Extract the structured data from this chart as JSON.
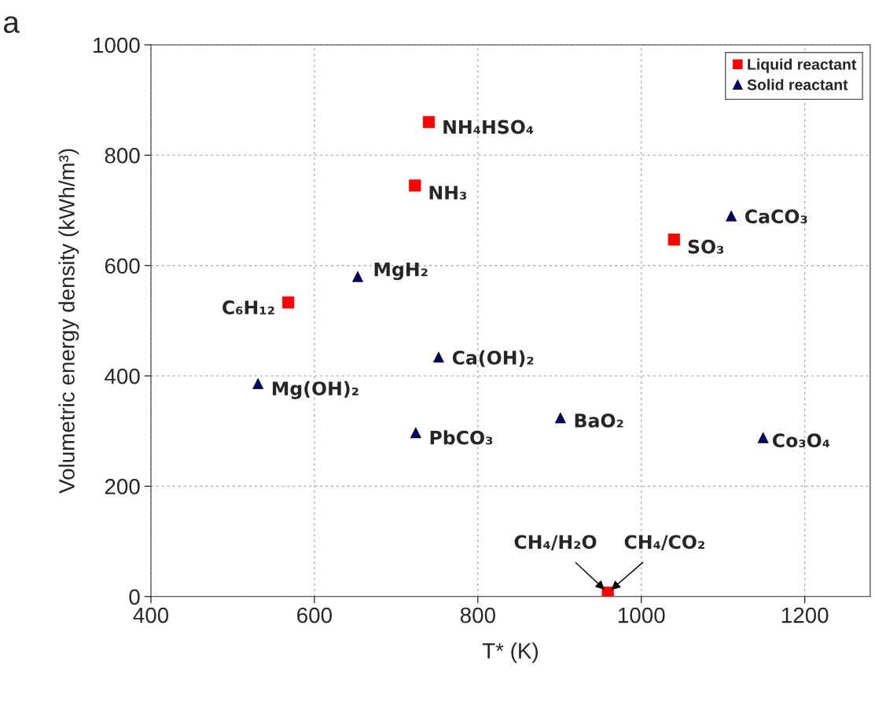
{
  "chart_data": {
    "type": "scatter",
    "title": "a",
    "xlabel": "T* (K)",
    "ylabel": "Volumetric energy density (kWh/m³)",
    "xlim": [
      400,
      1280
    ],
    "xticks": [
      400,
      600,
      800,
      1000,
      1200
    ],
    "ylim": [
      0,
      1000
    ],
    "yticks": [
      0,
      200,
      400,
      600,
      800,
      1000
    ],
    "grid": true,
    "legend": "top right",
    "series": [
      {
        "name": "Liquid reactant",
        "color": "#ff0000",
        "marker": "square",
        "x": [
          740,
          723,
          568,
          1040,
          959
        ],
        "values": [
          860,
          745,
          533,
          647,
          7
        ]
      },
      {
        "name": "Solid reactant",
        "color": "#000066",
        "marker": "triangle",
        "x": [
          653,
          752,
          531,
          724,
          1110,
          901,
          1149
        ],
        "values": [
          580,
          434,
          386,
          297,
          690,
          324,
          288
        ]
      }
    ],
    "annotations": [
      {
        "text": "NH₄HSO₄",
        "x": 740,
        "y": 860
      },
      {
        "text": "NH₃",
        "x": 723,
        "y": 745
      },
      {
        "text": "C₆H₁₂",
        "x": 568,
        "y": 533
      },
      {
        "text": "SO₃",
        "x": 1040,
        "y": 647
      },
      {
        "text": "CH₄/H₂O",
        "x": 959,
        "y": 7
      },
      {
        "text": "CH₄/CO₂",
        "x": 959,
        "y": 7
      },
      {
        "text": "MgH₂",
        "x": 653,
        "y": 580
      },
      {
        "text": "Ca(OH)₂",
        "x": 752,
        "y": 434
      },
      {
        "text": "Mg(OH)₂",
        "x": 531,
        "y": 386
      },
      {
        "text": "PbCO₃",
        "x": 724,
        "y": 297
      },
      {
        "text": "CaCO₃",
        "x": 1110,
        "y": 690
      },
      {
        "text": "BaO₂",
        "x": 901,
        "y": 324
      },
      {
        "text": "Co₃O₄",
        "x": 1149,
        "y": 288
      }
    ]
  }
}
